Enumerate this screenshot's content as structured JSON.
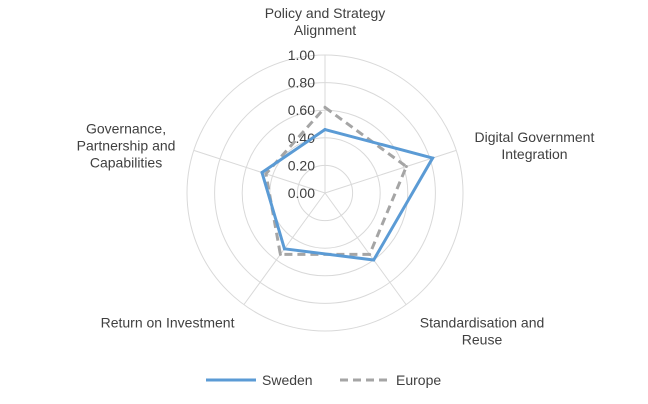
{
  "chart_data": {
    "type": "radar",
    "categories": [
      [
        "Policy and Strategy",
        "Alignment"
      ],
      [
        "Digital Government",
        "Integration"
      ],
      [
        "Standardisation and",
        "Reuse"
      ],
      [
        "Return on Investment"
      ],
      [
        "Governance,",
        "Partnership and",
        "Capabilities"
      ]
    ],
    "tick_labels": [
      "0.00",
      "0.20",
      "0.40",
      "0.60",
      "0.80",
      "1.00"
    ],
    "range": [
      0,
      1
    ],
    "series": [
      {
        "name": "Sweden",
        "values": [
          0.46,
          0.82,
          0.6,
          0.5,
          0.48
        ],
        "color": "#5b9bd5",
        "style": "solid"
      },
      {
        "name": "Europe",
        "values": [
          0.62,
          0.62,
          0.55,
          0.55,
          0.45
        ],
        "color": "#a5a5a5",
        "style": "dashed"
      }
    ],
    "legend_position": "bottom",
    "grid": true
  }
}
